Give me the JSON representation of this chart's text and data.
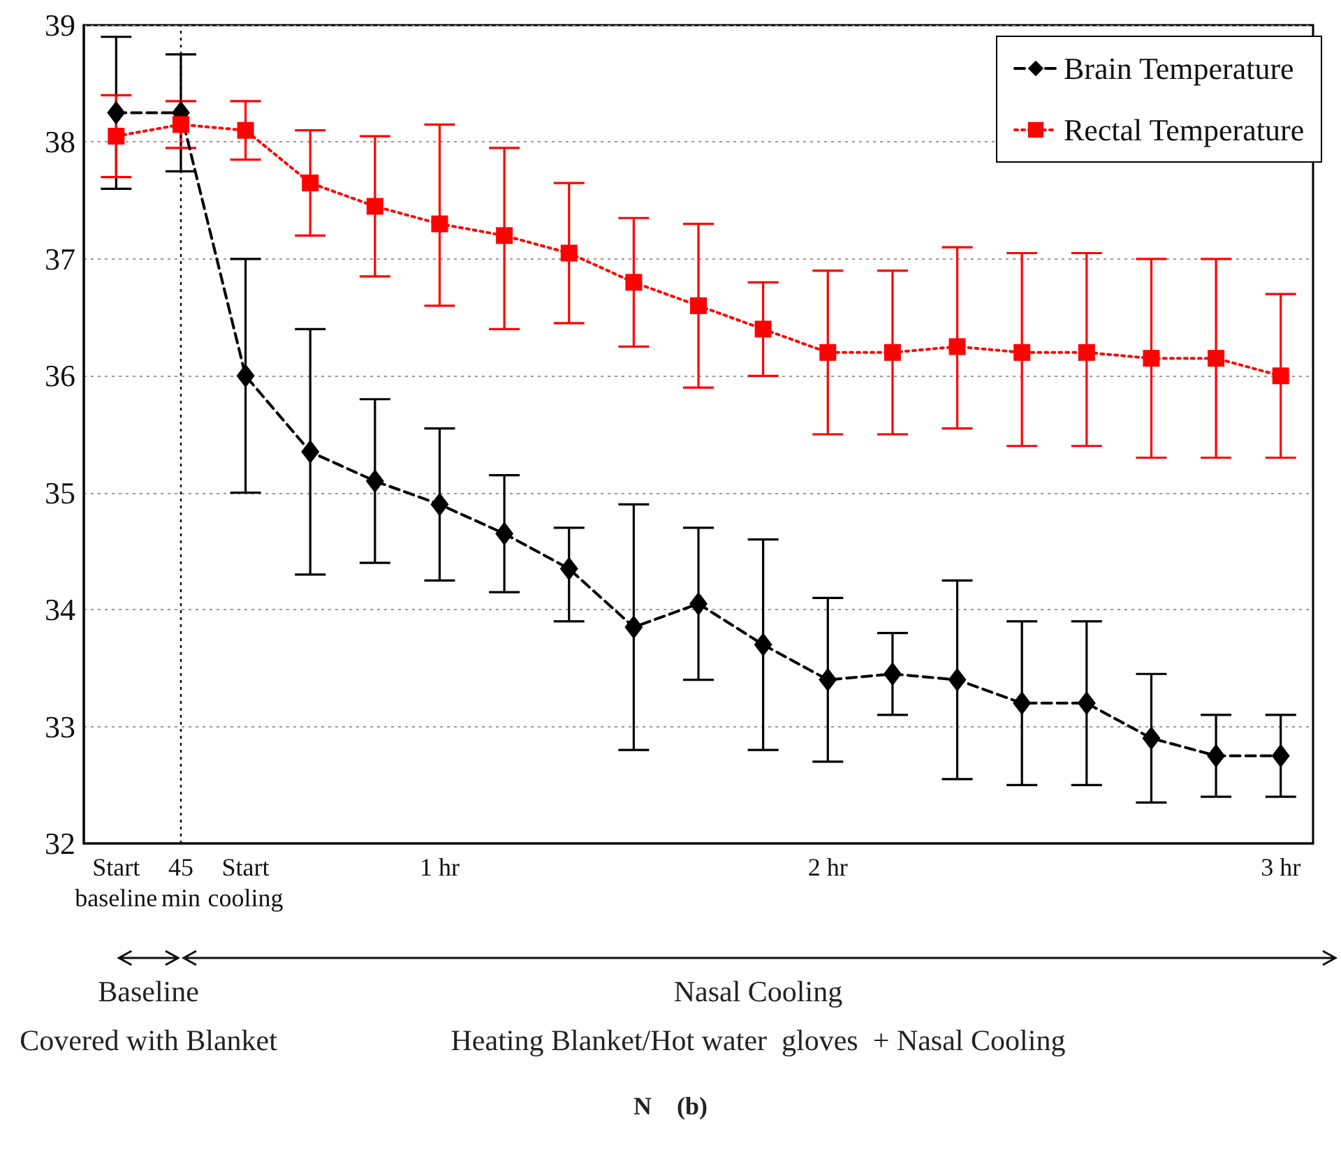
{
  "chart_data": {
    "type": "line",
    "categories": [
      "Start baseline",
      "45 min",
      "Start cooling",
      null,
      null,
      "1 hr",
      null,
      null,
      null,
      null,
      null,
      "2 hr",
      null,
      null,
      null,
      null,
      null,
      null,
      "3 hr"
    ],
    "ylim": [
      32,
      39
    ],
    "yticks": [
      32,
      33,
      34,
      35,
      36,
      37,
      38,
      39
    ],
    "grid": "y",
    "legend": "top right",
    "series": [
      {
        "name": "Brain Temperature",
        "color": "#000000",
        "marker": "diamond",
        "line_style": "dashed",
        "values": [
          38.25,
          38.25,
          36.0,
          35.35,
          35.1,
          34.9,
          34.65,
          34.35,
          33.85,
          34.05,
          33.7,
          33.4,
          33.45,
          33.4,
          33.2,
          33.2,
          32.9,
          32.75,
          32.75
        ],
        "errors": [
          [
            37.6,
            38.9
          ],
          [
            37.75,
            38.75
          ],
          [
            35.0,
            37.0
          ],
          [
            34.3,
            36.4
          ],
          [
            34.4,
            35.8
          ],
          [
            34.25,
            35.55
          ],
          [
            34.15,
            35.15
          ],
          [
            33.9,
            34.7
          ],
          [
            32.8,
            34.9
          ],
          [
            33.4,
            34.7
          ],
          [
            32.8,
            34.6
          ],
          [
            32.7,
            34.1
          ],
          [
            33.1,
            33.8
          ],
          [
            32.55,
            34.25
          ],
          [
            32.5,
            33.9
          ],
          [
            32.5,
            33.9
          ],
          [
            32.35,
            33.45
          ],
          [
            32.4,
            33.1
          ],
          [
            32.4,
            33.1
          ]
        ]
      },
      {
        "name": "Rectal Temperature",
        "color": "#ff0000",
        "marker": "square",
        "line_style": "dotted",
        "values": [
          38.05,
          38.15,
          38.1,
          37.65,
          37.45,
          37.3,
          37.2,
          37.05,
          36.8,
          36.6,
          36.4,
          36.2,
          36.2,
          36.25,
          36.2,
          36.2,
          36.15,
          36.15,
          36.0
        ],
        "errors": [
          [
            37.7,
            38.4
          ],
          [
            37.95,
            38.35
          ],
          [
            37.85,
            38.35
          ],
          [
            37.2,
            38.1
          ],
          [
            36.85,
            38.05
          ],
          [
            36.6,
            38.15
          ],
          [
            36.4,
            37.95
          ],
          [
            36.45,
            37.65
          ],
          [
            36.25,
            37.35
          ],
          [
            35.9,
            37.3
          ],
          [
            36.0,
            36.8
          ],
          [
            35.5,
            36.9
          ],
          [
            35.5,
            36.9
          ],
          [
            35.55,
            37.1
          ],
          [
            35.4,
            37.05
          ],
          [
            35.4,
            37.05
          ],
          [
            35.3,
            37.0
          ],
          [
            35.3,
            37.0
          ],
          [
            35.3,
            36.7
          ]
        ]
      }
    ],
    "ref_lines": [
      {
        "axis": "x",
        "value": "45 min",
        "line_style": "dotted",
        "color": "#000000"
      }
    ],
    "annotations": [
      "Baseline",
      "Covered with Blanket",
      "Nasal Cooling",
      "Heating Blanket/Hot water  gloves  + Nasal Cooling",
      "N    (b)"
    ]
  }
}
